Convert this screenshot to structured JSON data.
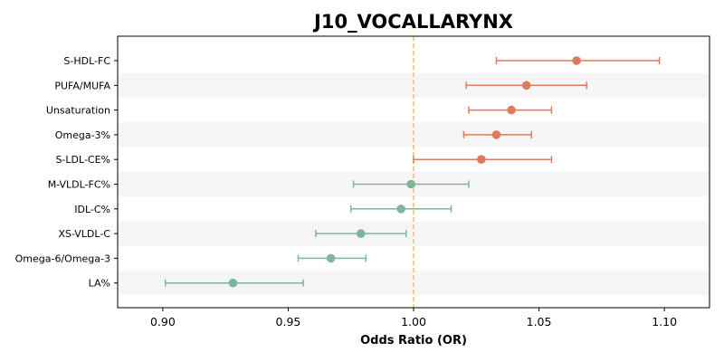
{
  "chart_data": {
    "type": "forest",
    "title": "J10_VOCALLARYNX",
    "xlabel": "Odds Ratio (OR)",
    "xlim": [
      0.882,
      1.118
    ],
    "xticks": [
      0.9,
      0.95,
      1.0,
      1.05,
      1.1
    ],
    "xtick_labels": [
      "0.90",
      "0.95",
      "1.00",
      "1.05",
      "1.10"
    ],
    "reference_line": 1.0,
    "reference_line_color": "#f2c27e",
    "positive_color": "#db7b5f",
    "negative_color": "#7fb59a",
    "stripe_color": "#f5f5f5",
    "grid": false,
    "rows": [
      {
        "label": "S-HDL-FC",
        "or": 1.065,
        "lower": 1.033,
        "upper": 1.098
      },
      {
        "label": "PUFA/MUFA",
        "or": 1.045,
        "lower": 1.021,
        "upper": 1.069
      },
      {
        "label": "Unsaturation",
        "or": 1.039,
        "lower": 1.022,
        "upper": 1.055
      },
      {
        "label": "Omega-3%",
        "or": 1.033,
        "lower": 1.02,
        "upper": 1.047
      },
      {
        "label": "S-LDL-CE%",
        "or": 1.027,
        "lower": 1.0,
        "upper": 1.055
      },
      {
        "label": "M-VLDL-FC%",
        "or": 0.999,
        "lower": 0.976,
        "upper": 1.022
      },
      {
        "label": "IDL-C%",
        "or": 0.995,
        "lower": 0.975,
        "upper": 1.015
      },
      {
        "label": "XS-VLDL-C",
        "or": 0.979,
        "lower": 0.961,
        "upper": 0.997
      },
      {
        "label": "Omega-6/Omega-3",
        "or": 0.967,
        "lower": 0.954,
        "upper": 0.981
      },
      {
        "label": "LA%",
        "or": 0.928,
        "lower": 0.901,
        "upper": 0.956
      }
    ]
  }
}
